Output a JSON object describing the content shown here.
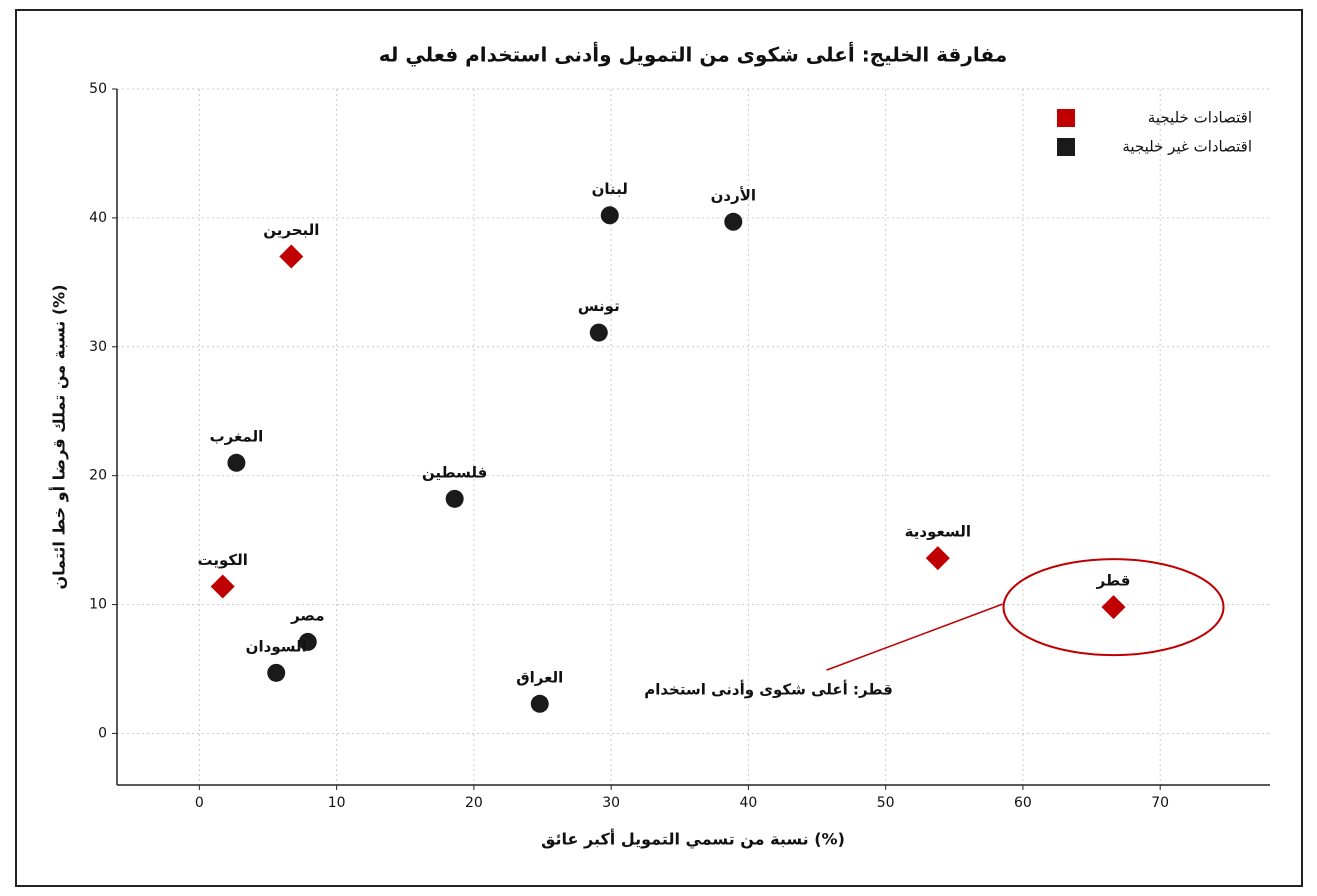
{
  "chart_data": {
    "type": "scatter",
    "title": "مفارقة الخليج: أعلى شكوى من التمويل وأدنى استخدام فعلي له",
    "xlabel": "نسبة من تسمي التمويل أكبر عائق (%)",
    "ylabel": "نسبة من تملك قرضا أو خط ائتمان (%)",
    "xlim": [
      -6,
      78
    ],
    "ylim": [
      -4,
      50
    ],
    "xticks": [
      0,
      10,
      20,
      30,
      40,
      50,
      60,
      70
    ],
    "yticks": [
      0,
      10,
      20,
      30,
      40,
      50
    ],
    "grid": true,
    "legend": "upper right",
    "series": [
      {
        "name": "اقتصادات خليجية",
        "color": "#c00000",
        "marker": "diamond",
        "labels": [
          "البحرين",
          "الكويت",
          "السعودية",
          "قطر"
        ],
        "x": [
          6.7,
          1.7,
          53.8,
          66.6
        ],
        "values": [
          37.0,
          11.4,
          13.6,
          9.8
        ]
      },
      {
        "name": "اقتصادات غير خليجية",
        "color": "#1a1a1a",
        "marker": "circle",
        "labels": [
          "لبنان",
          "الأردن",
          "تونس",
          "المغرب",
          "فلسطين",
          "مصر",
          "السودان",
          "العراق"
        ],
        "x": [
          29.9,
          38.9,
          29.1,
          2.7,
          18.6,
          7.9,
          5.6,
          24.8
        ],
        "values": [
          40.2,
          39.7,
          31.1,
          21.0,
          18.2,
          7.1,
          4.7,
          2.3
        ]
      }
    ],
    "annotation": {
      "text": "قطر: أعلى شكوى وأدنى استخدام",
      "series": 0,
      "point": 3
    }
  }
}
